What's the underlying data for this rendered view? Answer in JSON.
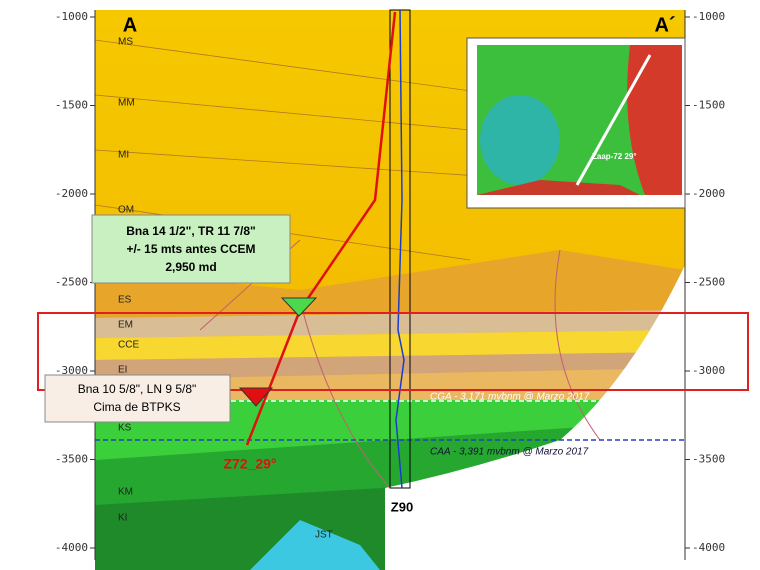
{
  "section": {
    "start_label": "A",
    "end_label": "A´",
    "depth_ticks": [
      -1000,
      -1500,
      -2000,
      -2500,
      -3000,
      -3500,
      -4000
    ],
    "layers": [
      "MS",
      "MM",
      "MI",
      "OM",
      "ES",
      "EM",
      "CCE",
      "EI",
      "KS",
      "KM",
      "KI",
      "JST"
    ],
    "wells": {
      "deviated": "Z72_29°",
      "vertical": "Z90"
    },
    "contacts": [
      "CGA - 3,171 mvbnm @ Marzo 2017",
      "CAA - 3,391 mvbnm @ Marzo 2017"
    ]
  },
  "callouts": [
    {
      "lines": [
        "Bna 14 1/2\", TR 11 7/8\"",
        "+/- 15 mts antes CCEM",
        "2,950 md"
      ]
    },
    {
      "lines": [
        "Bna 10 5/8\", LN 9 5/8\"",
        "Cima de BTPKS"
      ]
    }
  ],
  "inset_map": {
    "well_label": "Zaap-72 29°"
  }
}
